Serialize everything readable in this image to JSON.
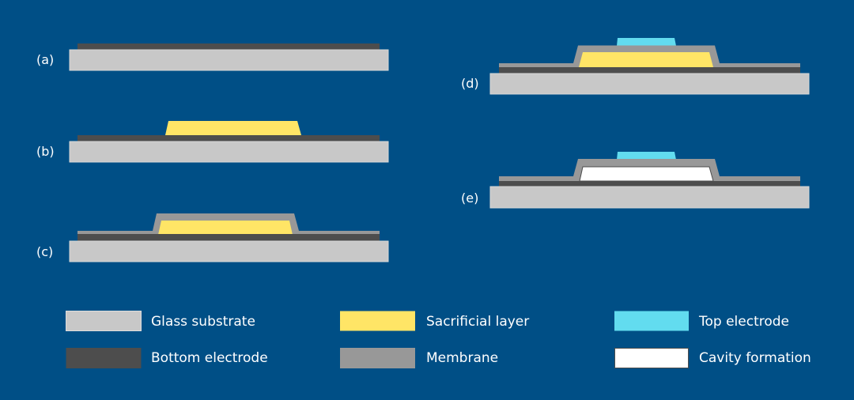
{
  "colors": {
    "background": "#004f86",
    "glass_substrate": "#c8c8c8",
    "bottom_electrode": "#4d4d4d",
    "membrane": "#989898",
    "sacrificial_layer": "#ffe566",
    "top_electrode": "#62dcef",
    "cavity": "#ffffff"
  },
  "steps": [
    {
      "label": "(a)"
    },
    {
      "label": "(b)"
    },
    {
      "label": "(c)"
    },
    {
      "label": "(d)"
    },
    {
      "label": "(e)"
    }
  ],
  "legend": [
    {
      "label": "Glass substrate",
      "key": "glass_substrate"
    },
    {
      "label": "Bottom electrode",
      "key": "bottom_electrode"
    },
    {
      "label": "Sacrificial layer",
      "key": "sacrificial_layer"
    },
    {
      "label": "Membrane",
      "key": "membrane"
    },
    {
      "label": "Top electrode",
      "key": "top_electrode"
    },
    {
      "label": "Cavity formation",
      "key": "cavity"
    }
  ]
}
